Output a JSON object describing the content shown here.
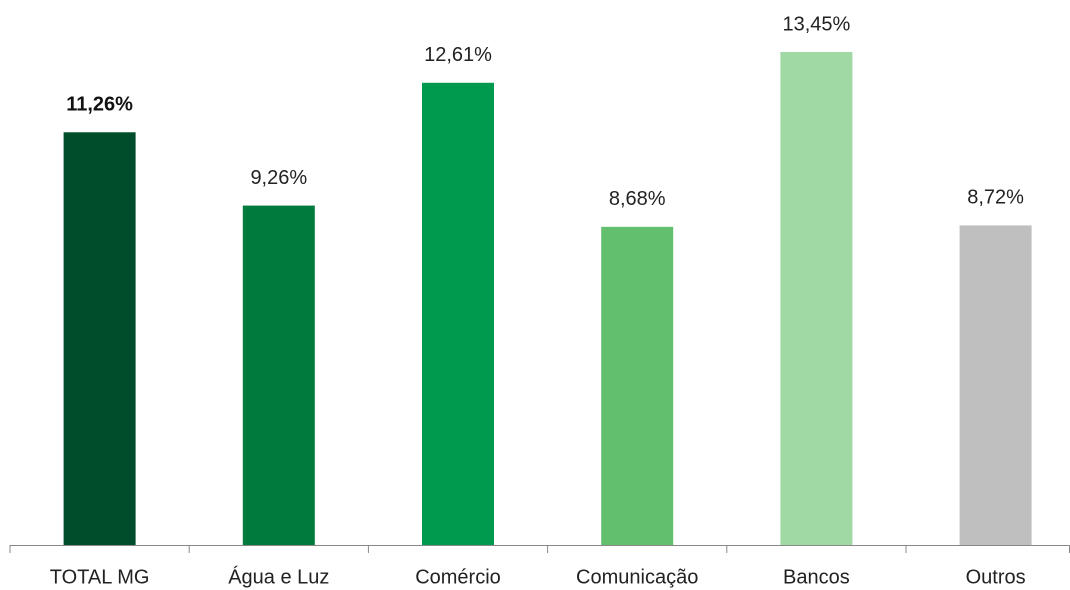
{
  "chart_data": {
    "type": "bar",
    "categories": [
      "TOTAL MG",
      "Água e Luz",
      "Comércio",
      "Comunicação",
      "Bancos",
      "Outros"
    ],
    "values": [
      11.26,
      9.26,
      12.61,
      8.68,
      13.45,
      8.72
    ],
    "value_labels": [
      "11,26%",
      "9,26%",
      "12,61%",
      "8,68%",
      "13,45%",
      "8,72%"
    ],
    "colors": [
      "#004d2c",
      "#007a3d",
      "#009a4e",
      "#62bf6e",
      "#a0d9a3",
      "#bfbfbf"
    ]
  }
}
